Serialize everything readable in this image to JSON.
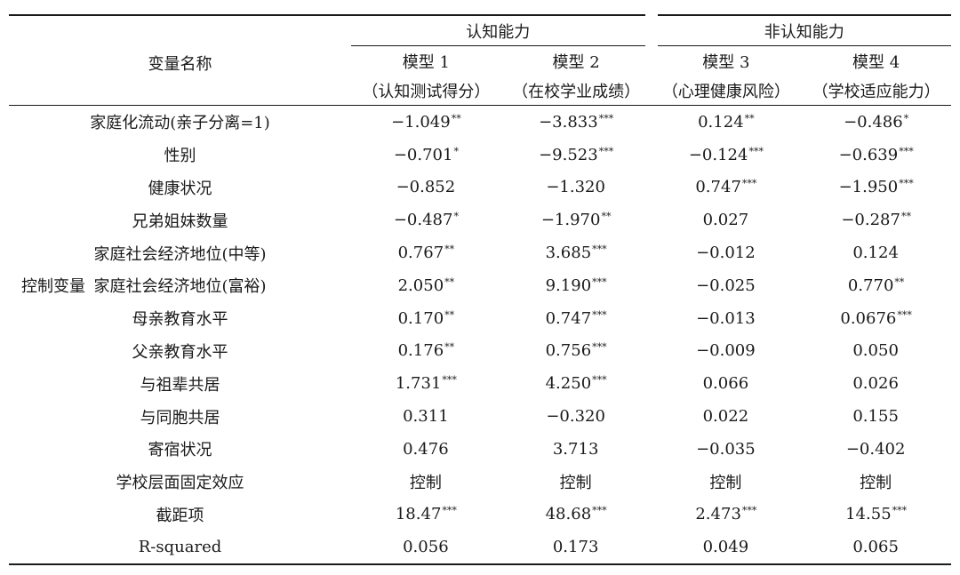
{
  "header": {
    "variable_col": "变量名称",
    "group_cognitive": "认知能力",
    "group_noncognitive": "非认知能力",
    "models": [
      {
        "name": "模型 1",
        "desc": "（认知测试得分）"
      },
      {
        "name": "模型 2",
        "desc": "（在校学业成绩）"
      },
      {
        "name": "模型 3",
        "desc": "（心理健康风险）"
      },
      {
        "name": "模型 4",
        "desc": "（学校适应能力）"
      }
    ]
  },
  "control_label": "控制变量",
  "rows": [
    {
      "name": "家庭化流动(亲子分离=1)",
      "vals": [
        [
          "−1.049",
          "**"
        ],
        [
          "−3.833",
          "***"
        ],
        [
          "0.124",
          "**"
        ],
        [
          "−0.486",
          "*"
        ]
      ]
    },
    {
      "name": "性别",
      "vals": [
        [
          "−0.701",
          "*"
        ],
        [
          "−9.523",
          "***"
        ],
        [
          "−0.124",
          "***"
        ],
        [
          "−0.639",
          "***"
        ]
      ]
    },
    {
      "name": "健康状况",
      "vals": [
        [
          "−0.852",
          ""
        ],
        [
          "−1.320",
          ""
        ],
        [
          "0.747",
          "***"
        ],
        [
          "−1.950",
          "***"
        ]
      ]
    },
    {
      "name": "兄弟姐妹数量",
      "vals": [
        [
          "−0.487",
          "*"
        ],
        [
          "−1.970",
          "**"
        ],
        [
          "0.027",
          ""
        ],
        [
          "−0.287",
          "**"
        ]
      ]
    },
    {
      "name": "家庭社会经济地位(中等)",
      "vals": [
        [
          "0.767",
          "**"
        ],
        [
          "3.685",
          "***"
        ],
        [
          "−0.012",
          ""
        ],
        [
          "0.124",
          ""
        ]
      ]
    },
    {
      "name": "家庭社会经济地位(富裕)",
      "vals": [
        [
          "2.050",
          "**"
        ],
        [
          "9.190",
          "***"
        ],
        [
          "−0.025",
          ""
        ],
        [
          "0.770",
          "**"
        ]
      ]
    },
    {
      "name": "母亲教育水平",
      "vals": [
        [
          "0.170",
          "**"
        ],
        [
          "0.747",
          "***"
        ],
        [
          "−0.013",
          ""
        ],
        [
          "0.0676",
          "***"
        ]
      ]
    },
    {
      "name": "父亲教育水平",
      "vals": [
        [
          "0.176",
          "**"
        ],
        [
          "0.756",
          "***"
        ],
        [
          "−0.009",
          ""
        ],
        [
          "0.050",
          ""
        ]
      ]
    },
    {
      "name": "与祖辈共居",
      "vals": [
        [
          "1.731",
          "***"
        ],
        [
          "4.250",
          "***"
        ],
        [
          "0.066",
          ""
        ],
        [
          "0.026",
          ""
        ]
      ]
    },
    {
      "name": "与同胞共居",
      "vals": [
        [
          "0.311",
          ""
        ],
        [
          "−0.320",
          ""
        ],
        [
          "0.022",
          ""
        ],
        [
          "0.155",
          ""
        ]
      ]
    },
    {
      "name": "寄宿状况",
      "vals": [
        [
          "0.476",
          ""
        ],
        [
          "3.713",
          ""
        ],
        [
          "−0.035",
          ""
        ],
        [
          "−0.402",
          ""
        ]
      ]
    },
    {
      "name": "学校层面固定效应",
      "vals": [
        [
          "控制",
          ""
        ],
        [
          "控制",
          ""
        ],
        [
          "控制",
          ""
        ],
        [
          "控制",
          ""
        ]
      ]
    },
    {
      "name": "截距项",
      "vals": [
        [
          "18.47",
          "***"
        ],
        [
          "48.68",
          "***"
        ],
        [
          "2.473",
          "***"
        ],
        [
          "14.55",
          "***"
        ]
      ]
    },
    {
      "name": "R-squared",
      "vals": [
        [
          "0.056",
          ""
        ],
        [
          "0.173",
          ""
        ],
        [
          "0.049",
          ""
        ],
        [
          "0.065",
          ""
        ]
      ]
    }
  ]
}
